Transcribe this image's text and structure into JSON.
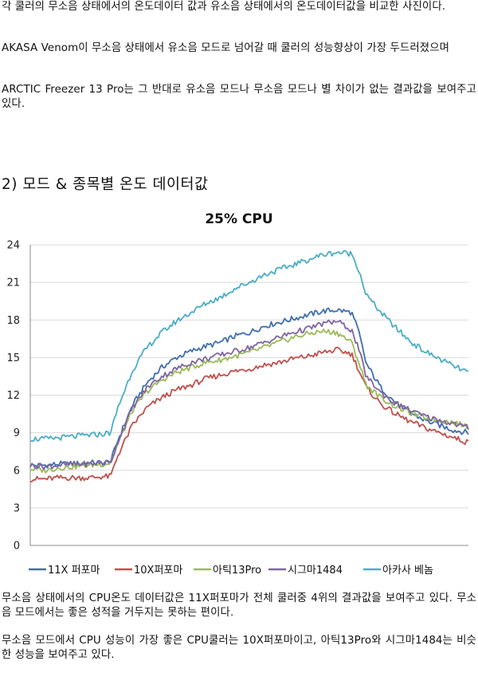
{
  "paragraphs": {
    "p1": "각 쿨러의 무소음 상태에서의 온도데이터 값과 유소음 상태에서의 온도데이터값을 비교한 사진이다.",
    "p2": "AKASA Venom이 무소음 상태에서 유소음 모드로 넘어갈 때 쿨러의 성능향상이 가장 두드러졌으며",
    "p3": "ARCTIC Freezer 13 Pro는 그 반대로 유소음 모드나 무소음 모드나 별 차이가 없는 결과값을 보여주고 있다.",
    "p4": "무소음 상태에서의 CPU온도 데이터값은 11X퍼포마가 전체 쿨러중 4위의 결과값을 보여주고 있다. 무소음 모드에서는 좋은 성적을 거두지는 못하는 편이다.",
    "p5": "무소음 모드에서 CPU 성능이 가장 좋은 CPU쿨러는 10X퍼포마이고, 아틱13Pro와 시그마1484는 비슷한 성능을 보여주고 있다."
  },
  "section_title": "2) 모드 & 종목별 온도 데이터값",
  "chart_data": {
    "type": "line",
    "title": "25% CPU",
    "ylim": [
      0,
      24
    ],
    "yticks": [
      0,
      3,
      6,
      9,
      12,
      15,
      18,
      21,
      24
    ],
    "grid": true,
    "legend_position": "bottom",
    "x": [
      0,
      20,
      40,
      60,
      80,
      100,
      110,
      120,
      140,
      160,
      180,
      200,
      220,
      240,
      260,
      280,
      300,
      320,
      340,
      360,
      380,
      400,
      420,
      440,
      450,
      460,
      480,
      500,
      520,
      540,
      560,
      580,
      600
    ],
    "series": [
      {
        "name": "11X 퍼포마",
        "color": "#3f6fae",
        "values": [
          6.4,
          6.4,
          6.5,
          6.5,
          6.6,
          6.6,
          6.7,
          8.4,
          11.2,
          13.0,
          14.2,
          15.0,
          15.5,
          15.9,
          16.2,
          16.7,
          17.0,
          17.5,
          17.8,
          18.1,
          18.4,
          18.7,
          18.8,
          18.6,
          17.0,
          14.5,
          12.6,
          11.4,
          10.6,
          10.0,
          9.6,
          9.2,
          9.0
        ]
      },
      {
        "name": "10X퍼포마",
        "color": "#c0504d",
        "values": [
          5.3,
          5.3,
          5.4,
          5.4,
          5.4,
          5.5,
          5.5,
          7.2,
          9.6,
          11.0,
          11.8,
          12.4,
          12.8,
          13.3,
          13.6,
          13.9,
          14.1,
          14.4,
          14.6,
          14.9,
          15.1,
          15.4,
          15.6,
          15.3,
          14.0,
          12.6,
          11.3,
          10.5,
          9.9,
          9.4,
          9.0,
          8.6,
          8.2
        ]
      },
      {
        "name": "아틱13Pro",
        "color": "#9bbb59",
        "values": [
          6.1,
          6.0,
          6.2,
          6.3,
          6.4,
          6.5,
          6.6,
          8.1,
          10.8,
          12.3,
          13.2,
          13.8,
          14.2,
          14.6,
          14.8,
          15.1,
          15.4,
          15.8,
          16.2,
          16.6,
          16.9,
          17.1,
          17.0,
          16.2,
          14.6,
          12.8,
          11.8,
          11.1,
          10.6,
          10.2,
          10.0,
          9.8,
          9.5
        ]
      },
      {
        "name": "시그마1484",
        "color": "#8064a2",
        "values": [
          6.4,
          6.3,
          6.4,
          6.5,
          6.5,
          6.6,
          6.6,
          8.3,
          11.0,
          12.6,
          13.5,
          14.1,
          14.6,
          14.9,
          15.2,
          15.5,
          15.8,
          16.2,
          16.6,
          17.0,
          17.3,
          17.7,
          17.9,
          17.2,
          15.6,
          13.5,
          12.2,
          11.3,
          10.8,
          10.3,
          10.0,
          9.7,
          9.4
        ]
      },
      {
        "name": "아카사 베놈",
        "color": "#4bacc6",
        "values": [
          8.5,
          8.5,
          8.6,
          8.7,
          8.8,
          8.9,
          9.0,
          11.0,
          14.0,
          15.8,
          17.0,
          17.9,
          18.6,
          19.3,
          19.8,
          20.5,
          21.0,
          21.6,
          22.0,
          22.4,
          22.8,
          23.2,
          23.4,
          23.3,
          22.0,
          20.0,
          18.6,
          17.4,
          16.3,
          15.5,
          14.9,
          14.3,
          13.8
        ]
      }
    ]
  }
}
